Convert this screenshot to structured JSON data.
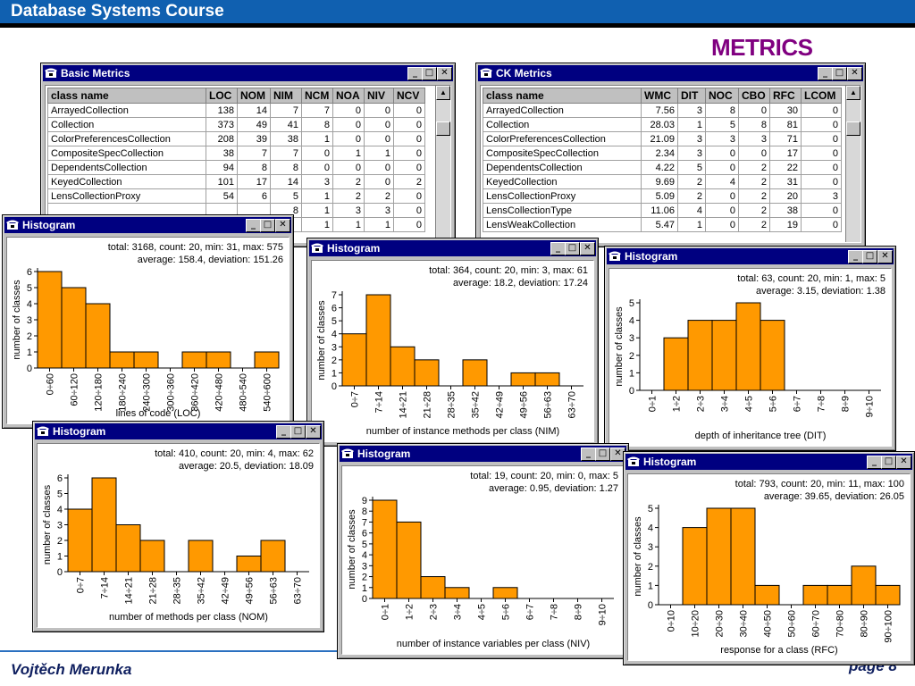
{
  "slide": {
    "header": "Database Systems Course",
    "title": "METRICS",
    "author": "Vojtěch Merunka",
    "page": "page 8"
  },
  "icons": {
    "window_icon": "telephone-icon"
  },
  "colors": {
    "bar": "#ff9900",
    "titlebar": "#000080",
    "header": "#1060b0"
  },
  "basic_metrics": {
    "title": "Basic Metrics",
    "columns": [
      "class name",
      "LOC",
      "NOM",
      "NIM",
      "NCM",
      "NOA",
      "NIV",
      "NCV"
    ],
    "rows": [
      [
        "ArrayedCollection",
        "138",
        "14",
        "7",
        "7",
        "0",
        "0",
        "0"
      ],
      [
        "Collection",
        "373",
        "49",
        "41",
        "8",
        "0",
        "0",
        "0"
      ],
      [
        "ColorPreferencesCollection",
        "208",
        "39",
        "38",
        "1",
        "0",
        "0",
        "0"
      ],
      [
        "CompositeSpecCollection",
        "38",
        "7",
        "7",
        "0",
        "1",
        "1",
        "0"
      ],
      [
        "DependentsCollection",
        "94",
        "8",
        "8",
        "0",
        "0",
        "0",
        "0"
      ],
      [
        "KeyedCollection",
        "101",
        "17",
        "14",
        "3",
        "2",
        "0",
        "2"
      ],
      [
        "LensCollectionProxy",
        "54",
        "6",
        "5",
        "1",
        "2",
        "2",
        "0"
      ],
      [
        "",
        "",
        "",
        "8",
        "1",
        "3",
        "3",
        "0"
      ],
      [
        "",
        "",
        "",
        "",
        "1",
        "1",
        "1",
        "0"
      ]
    ]
  },
  "ck_metrics": {
    "title": "CK Metrics",
    "columns": [
      "class name",
      "WMC",
      "DIT",
      "NOC",
      "CBO",
      "RFC",
      "LCOM"
    ],
    "rows": [
      [
        "ArrayedCollection",
        "7.56",
        "3",
        "8",
        "0",
        "30",
        "0"
      ],
      [
        "Collection",
        "28.03",
        "1",
        "5",
        "8",
        "81",
        "0"
      ],
      [
        "ColorPreferencesCollection",
        "21.09",
        "3",
        "3",
        "3",
        "71",
        "0"
      ],
      [
        "CompositeSpecCollection",
        "2.34",
        "3",
        "0",
        "0",
        "17",
        "0"
      ],
      [
        "DependentsCollection",
        "4.22",
        "5",
        "0",
        "2",
        "22",
        "0"
      ],
      [
        "KeyedCollection",
        "9.69",
        "2",
        "4",
        "2",
        "31",
        "0"
      ],
      [
        "LensCollectionProxy",
        "5.09",
        "2",
        "0",
        "2",
        "20",
        "3"
      ],
      [
        "LensCollectionType",
        "11.06",
        "4",
        "0",
        "2",
        "38",
        "0"
      ],
      [
        "LensWeakCollection",
        "5.47",
        "1",
        "0",
        "2",
        "19",
        "0"
      ]
    ]
  },
  "chart_data": [
    {
      "type": "bar",
      "window_title": "Histogram",
      "stats_line1": "total: 3168, count: 20, min: 31, max: 575",
      "stats_line2": "average: 158.4, deviation: 151.26",
      "ylabel": "number of classes",
      "xlabel": "lines of code (LOC)",
      "categories": [
        "0÷60",
        "60÷120",
        "120÷180",
        "180÷240",
        "240÷300",
        "300÷360",
        "360÷420",
        "420÷480",
        "480÷540",
        "540÷600"
      ],
      "values": [
        6,
        5,
        4,
        1,
        1,
        0,
        1,
        1,
        0,
        1
      ],
      "ylim": [
        0,
        6
      ]
    },
    {
      "type": "bar",
      "window_title": "Histogram",
      "stats_line1": "total: 364, count: 20, min: 3, max: 61",
      "stats_line2": "average: 18.2, deviation: 17.24",
      "ylabel": "number of classes",
      "xlabel": "number of instance methods per class (NIM)",
      "categories": [
        "0÷7",
        "7÷14",
        "14÷21",
        "21÷28",
        "28÷35",
        "35÷42",
        "42÷49",
        "49÷56",
        "56÷63",
        "63÷70"
      ],
      "values": [
        4,
        7,
        3,
        2,
        0,
        2,
        0,
        1,
        1,
        0
      ],
      "ylim": [
        0,
        7
      ]
    },
    {
      "type": "bar",
      "window_title": "Histogram",
      "stats_line1": "total: 63, count: 20, min: 1, max: 5",
      "stats_line2": "average: 3.15, deviation: 1.38",
      "ylabel": "number of classes",
      "xlabel": "depth of inheritance tree (DIT)",
      "categories": [
        "0÷1",
        "1÷2",
        "2÷3",
        "3÷4",
        "4÷5",
        "5÷6",
        "6÷7",
        "7÷8",
        "8÷9",
        "9÷10"
      ],
      "values": [
        0,
        3,
        4,
        4,
        5,
        4,
        0,
        0,
        0,
        0
      ],
      "ylim": [
        0,
        5
      ]
    },
    {
      "type": "bar",
      "window_title": "Histogram",
      "stats_line1": "total: 410, count: 20, min: 4, max: 62",
      "stats_line2": "average: 20.5, deviation: 18.09",
      "ylabel": "number of classes",
      "xlabel": "number of methods per class (NOM)",
      "categories": [
        "0÷7",
        "7÷14",
        "14÷21",
        "21÷28",
        "28÷35",
        "35÷42",
        "42÷49",
        "49÷56",
        "56÷63",
        "63÷70"
      ],
      "values": [
        4,
        6,
        3,
        2,
        0,
        2,
        0,
        1,
        2,
        0
      ],
      "ylim": [
        0,
        6
      ]
    },
    {
      "type": "bar",
      "window_title": "Histogram",
      "stats_line1": "total: 19, count: 20, min: 0, max: 5",
      "stats_line2": "average: 0.95, deviation: 1.27",
      "ylabel": "number of classes",
      "xlabel": "number of instance variables per class (NIV)",
      "categories": [
        "0÷1",
        "1÷2",
        "2÷3",
        "3÷4",
        "4÷5",
        "5÷6",
        "6÷7",
        "7÷8",
        "8÷9",
        "9÷10"
      ],
      "values": [
        9,
        7,
        2,
        1,
        0,
        1,
        0,
        0,
        0,
        0
      ],
      "ylim": [
        0,
        9
      ]
    },
    {
      "type": "bar",
      "window_title": "Histogram",
      "stats_line1": "total: 793, count: 20, min: 11, max: 100",
      "stats_line2": "average: 39.65, deviation: 26.05",
      "ylabel": "number of classes",
      "xlabel": "response for a class (RFC)",
      "categories": [
        "0÷10",
        "10÷20",
        "20÷30",
        "30÷40",
        "40÷50",
        "50÷60",
        "60÷70",
        "70÷80",
        "80÷90",
        "90÷100"
      ],
      "values": [
        0,
        4,
        5,
        5,
        1,
        0,
        1,
        1,
        2,
        1
      ],
      "ylim": [
        0,
        5
      ]
    }
  ]
}
